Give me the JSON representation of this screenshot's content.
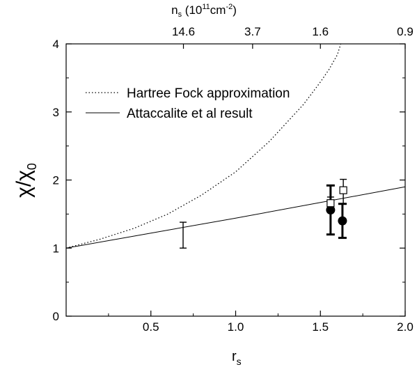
{
  "chart_data": {
    "type": "line",
    "xlabel": "r",
    "xlabel_sub": "s",
    "ylabel_main": "χ/χ",
    "ylabel_sub": "0",
    "top_axis": {
      "label_prefix": "n",
      "label_sub": "s",
      "label_paren_open": " (10",
      "label_exp": "11",
      "label_unit": "cm",
      "label_unit_exp": "-2",
      "label_paren_close": ")",
      "ticks": [
        {
          "r": 0.692,
          "label": "14.6"
        },
        {
          "r": 1.1,
          "label": "3.7"
        },
        {
          "r": 1.5,
          "label": "1.6"
        },
        {
          "r": 2.0,
          "label": "0.9"
        }
      ]
    },
    "xlim": [
      0,
      2.0
    ],
    "ylim": [
      0,
      4
    ],
    "xticks": [
      {
        "v": 0.5,
        "label": "0.5"
      },
      {
        "v": 1.0,
        "label": "1.0"
      },
      {
        "v": 1.5,
        "label": "1.5"
      },
      {
        "v": 2.0,
        "label": "2.0"
      }
    ],
    "yticks": [
      {
        "v": 0,
        "label": "0"
      },
      {
        "v": 1,
        "label": "1"
      },
      {
        "v": 2,
        "label": "2"
      },
      {
        "v": 3,
        "label": "3"
      },
      {
        "v": 4,
        "label": "4"
      }
    ],
    "legend_position": "top-left",
    "series": [
      {
        "name": "Hartree Fock approximation",
        "style": "dotted",
        "x": [
          0.0,
          0.2,
          0.4,
          0.6,
          0.8,
          1.0,
          1.2,
          1.4,
          1.5,
          1.55,
          1.6,
          1.62
        ],
        "y": [
          1.0,
          1.13,
          1.29,
          1.5,
          1.78,
          2.12,
          2.57,
          3.11,
          3.44,
          3.62,
          3.84,
          4.0
        ]
      },
      {
        "name": "Attaccalite et al result",
        "style": "solid",
        "x": [
          0.0,
          0.5,
          1.0,
          1.5,
          2.0
        ],
        "y": [
          1.0,
          1.22,
          1.44,
          1.67,
          1.9
        ]
      }
    ],
    "points": [
      {
        "marker": "circle-filled",
        "x": 1.56,
        "y": 1.56,
        "err_low": 1.2,
        "err_high": 1.92
      },
      {
        "marker": "circle-filled",
        "x": 1.63,
        "y": 1.4,
        "err_low": 1.15,
        "err_high": 1.65
      },
      {
        "marker": "square-open",
        "x": 1.56,
        "y": 1.66,
        "err_low": 1.2,
        "err_high": 1.75
      },
      {
        "marker": "square-open",
        "x": 1.635,
        "y": 1.85,
        "err_low": 1.65,
        "err_high": 2.01
      },
      {
        "marker": "errorbar-only",
        "x": 0.69,
        "y": 1.19,
        "err_low": 1.0,
        "err_high": 1.38
      }
    ]
  }
}
